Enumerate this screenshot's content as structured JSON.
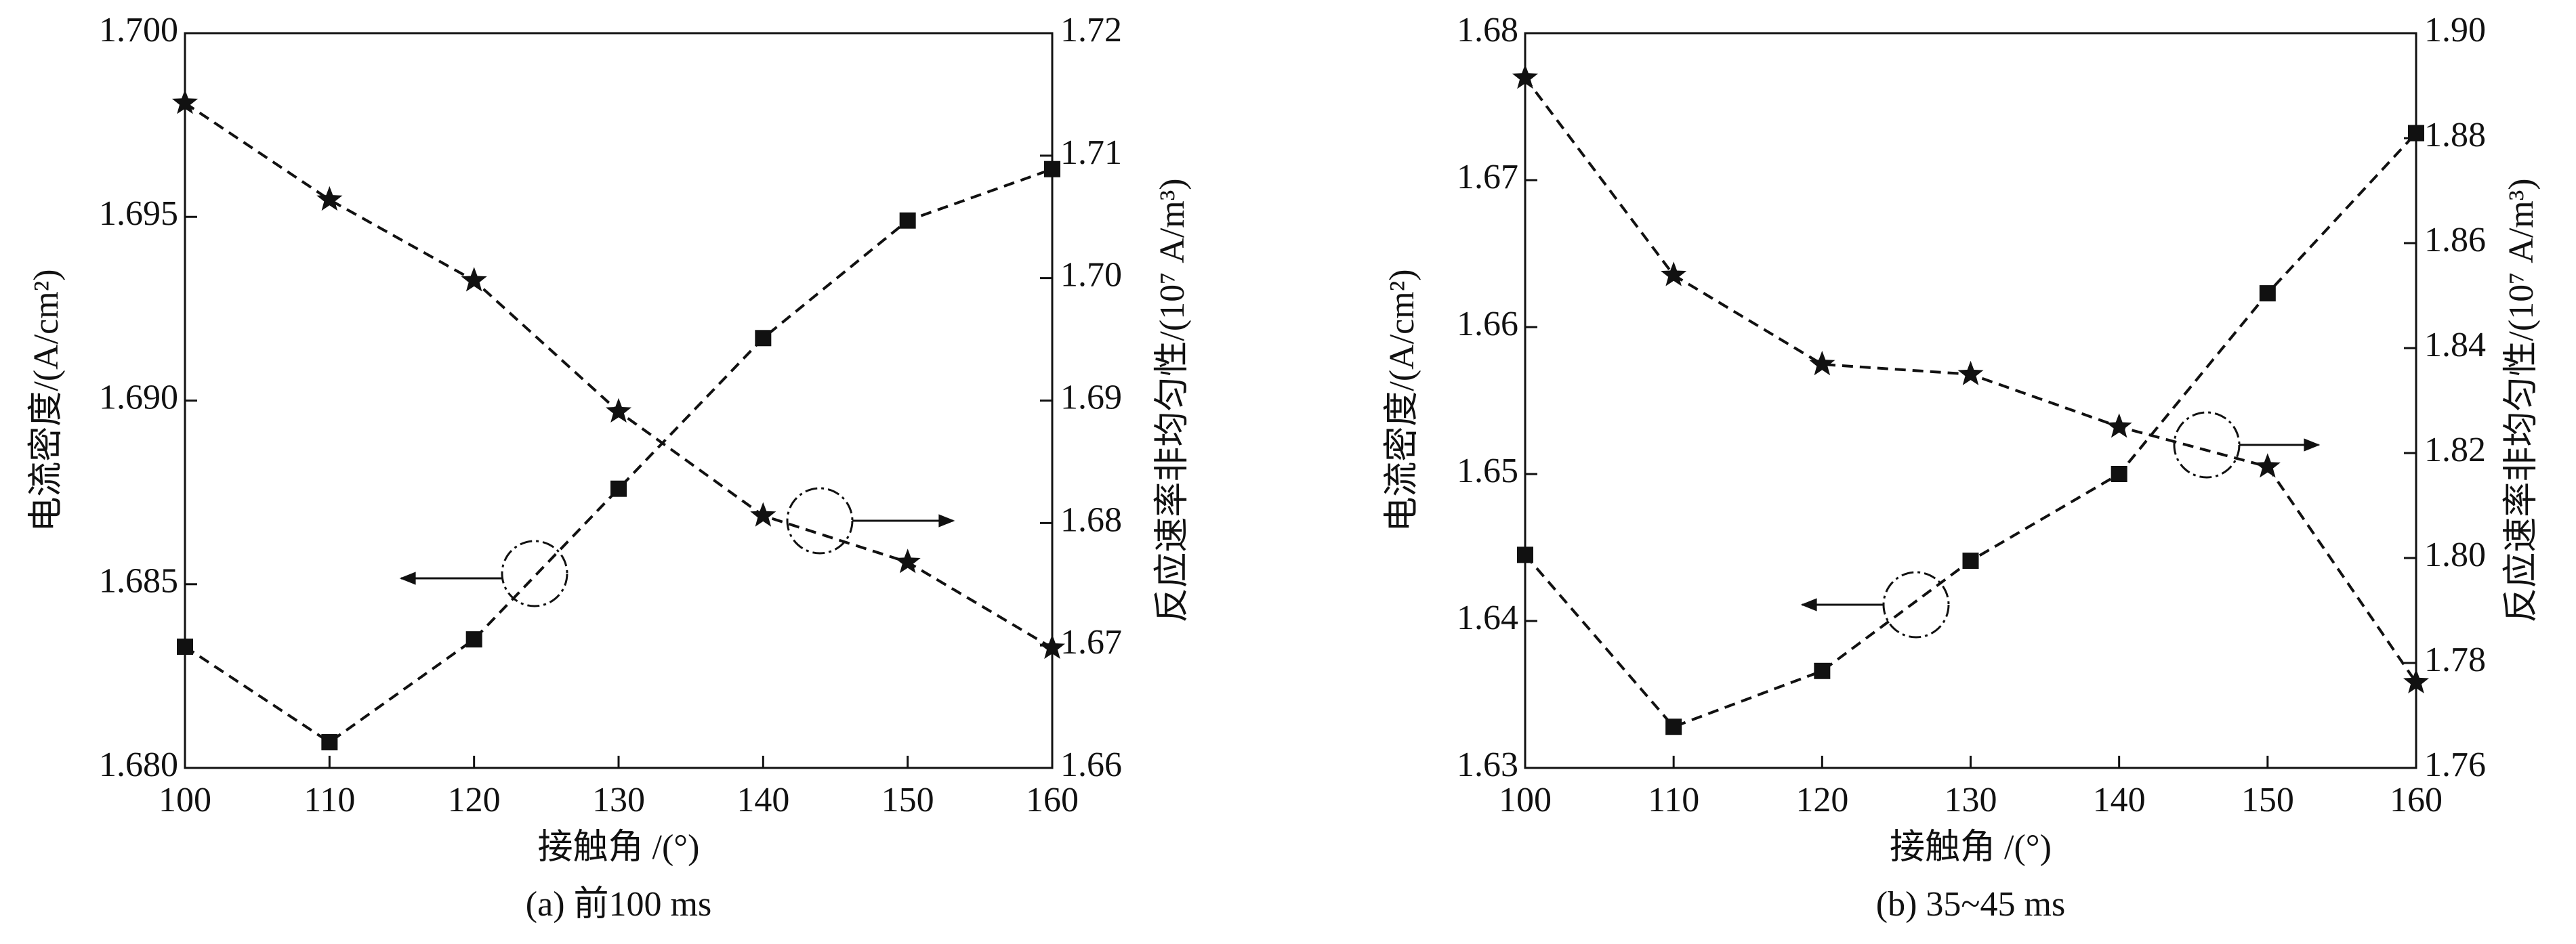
{
  "chart_data": [
    {
      "type": "line",
      "x_label": "接触角 /(°)",
      "y_label": "电流密度/(A/cm²)",
      "y2_label": "反应速率非均匀性/(10⁷ A/m³)",
      "caption": "(a) 前100 ms",
      "x": [
        100,
        110,
        120,
        130,
        140,
        150,
        160
      ],
      "xlim": [
        100,
        160
      ],
      "xticks": [
        100,
        110,
        120,
        130,
        140,
        150,
        160
      ],
      "ylim": [
        1.68,
        1.7
      ],
      "yticks": [
        {
          "value": 1.68,
          "label": "1.680"
        },
        {
          "value": 1.685,
          "label": "1.685"
        },
        {
          "value": 1.69,
          "label": "1.690"
        },
        {
          "value": 1.695,
          "label": "1.695"
        },
        {
          "value": 1.7,
          "label": "1.700"
        }
      ],
      "y2lim": [
        1.66,
        1.72
      ],
      "y2ticks": [
        1.66,
        1.67,
        1.68,
        1.69,
        {
          "value": 1.7,
          "label": "1.70"
        },
        1.71,
        1.72
      ],
      "series": [
        {
          "color": "#111111",
          "marker": "square",
          "values": [
            1.6833,
            1.6807,
            1.6835,
            1.6876,
            1.6917,
            1.6949,
            1.6963
          ]
        },
        {
          "color": "#111111",
          "marker": "star",
          "axis": "y2",
          "values": [
            1.7143,
            1.7064,
            1.6998,
            1.6891,
            1.6806,
            1.6768,
            1.6698
          ]
        }
      ]
    },
    {
      "type": "line",
      "x_label": "接触角 /(°)",
      "y_label": "电流密度/(A/cm²)",
      "y2_label": "反应速率非均匀性/(10⁷ A/m³)",
      "caption": "(b) 35~45 ms",
      "x": [
        100,
        110,
        120,
        130,
        140,
        150,
        160
      ],
      "xlim": [
        100,
        160
      ],
      "xticks": [
        100,
        110,
        120,
        130,
        140,
        150,
        160
      ],
      "ylim": [
        1.63,
        1.68
      ],
      "yticks": [
        1.63,
        1.64,
        1.65,
        1.66,
        1.67,
        1.68
      ],
      "y2lim": [
        1.76,
        1.9
      ],
      "y2ticks": [
        1.76,
        1.78,
        {
          "value": 1.8,
          "label": "1.80"
        },
        1.82,
        1.84,
        1.86,
        1.88,
        {
          "value": 1.9,
          "label": "1.90"
        }
      ],
      "series": [
        {
          "color": "#111111",
          "marker": "square",
          "values": [
            1.6445,
            1.6328,
            1.6366,
            1.6441,
            1.65,
            1.6623,
            1.6732
          ]
        },
        {
          "color": "#111111",
          "marker": "star",
          "axis": "y2",
          "values": [
            1.8915,
            1.8539,
            1.8369,
            1.835,
            1.825,
            1.8174,
            1.7763
          ]
        }
      ]
    }
  ]
}
